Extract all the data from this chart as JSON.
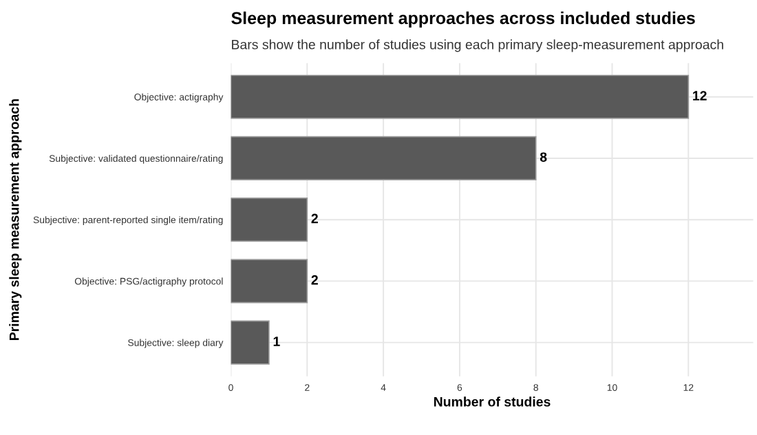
{
  "chart_data": {
    "type": "bar",
    "orientation": "horizontal",
    "title": "Sleep measurement approaches across included studies",
    "subtitle": "Bars show the number of studies using each primary sleep-measurement approach",
    "xlabel": "Number of studies",
    "ylabel": "Primary sleep measurement approach",
    "categories": [
      "Objective: actigraphy",
      "Subjective: validated questionnaire/rating",
      "Subjective: parent-reported single item/rating",
      "Objective: PSG/actigraphy protocol",
      "Subjective: sleep diary"
    ],
    "values": [
      12,
      8,
      2,
      2,
      1
    ],
    "color": "#595959",
    "xlim": [
      0,
      13.7
    ],
    "xticks": [
      0,
      2,
      4,
      6,
      8,
      10,
      12
    ],
    "grid": true,
    "data_labels": true
  }
}
